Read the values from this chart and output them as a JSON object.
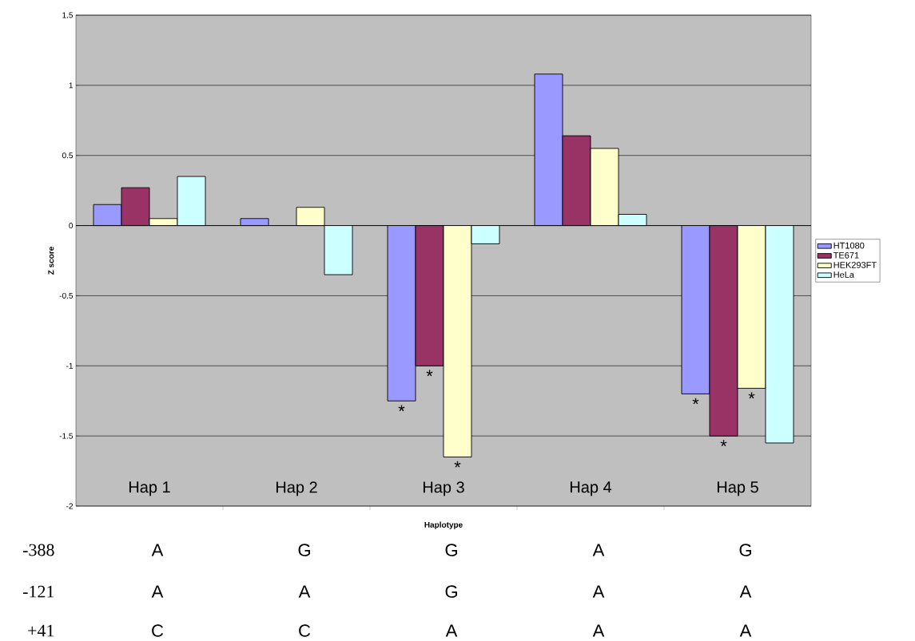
{
  "chart_data": {
    "type": "bar",
    "xlabel": "Haplotype",
    "ylabel": "Z score",
    "categories": [
      "Hap 1",
      "Hap 2",
      "Hap 3",
      "Hap 4",
      "Hap 5"
    ],
    "series": [
      {
        "name": "HT1080",
        "color": "#9999ff",
        "values": [
          0.15,
          0.05,
          -1.25,
          1.08,
          -1.2
        ]
      },
      {
        "name": "TE671",
        "color": "#993366",
        "values": [
          0.27,
          null,
          -1.0,
          0.64,
          -1.5
        ]
      },
      {
        "name": "HEK293FT",
        "color": "#ffffcc",
        "values": [
          0.05,
          0.13,
          -1.65,
          0.55,
          -1.16
        ]
      },
      {
        "name": "HeLa",
        "color": "#ccffff",
        "values": [
          0.35,
          -0.35,
          -0.13,
          0.08,
          -1.55
        ]
      }
    ],
    "ylim": [
      -2,
      1.5
    ],
    "yticks": [
      -2,
      -1.5,
      -1,
      -0.5,
      0,
      0.5,
      1,
      1.5
    ],
    "grid": "y",
    "legend": "right",
    "annotations": [
      {
        "text": "*",
        "x": "Hap 3",
        "y": -1.25
      },
      {
        "text": "*",
        "x": "Hap 3",
        "y": -1.0
      },
      {
        "text": "*",
        "x": "Hap 3",
        "y": -1.65
      },
      {
        "text": "*",
        "x": "Hap 5",
        "y": -1.2
      },
      {
        "text": "*",
        "x": "Hap 5",
        "y": -1.5
      },
      {
        "text": "*",
        "x": "Hap 5",
        "y": -1.16
      },
      "-388",
      "A",
      "G",
      "G",
      "A",
      "G",
      "-121",
      "A",
      "A",
      "G",
      "A",
      "A",
      "+41",
      "C",
      "C",
      "A",
      "A",
      "A"
    ]
  }
}
